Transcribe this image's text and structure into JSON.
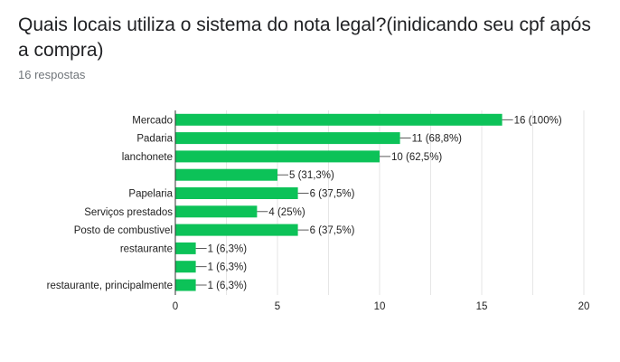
{
  "question": {
    "title": "Quais locais utiliza o sistema do nota legal?(inidicando seu cpf após a compra)",
    "responses": "16 respostas"
  },
  "colors": {
    "bar": "#0cc258",
    "grid": "#e6e6e6",
    "axis": "#333333",
    "text": "#222222"
  },
  "chart_data": {
    "type": "bar",
    "orientation": "horizontal",
    "categories": [
      "Mercado",
      "Padaria",
      "lanchonete",
      "",
      "Papelaria",
      "Serviços prestados",
      "Posto de combustivel",
      "restaurante",
      "",
      "restaurante, principalmente"
    ],
    "values": [
      16,
      11,
      10,
      5,
      6,
      4,
      6,
      1,
      1,
      1
    ],
    "data_labels": [
      "16 (100%)",
      "11 (68,8%)",
      "10 (62,5%)",
      "5 (31,3%)",
      "6 (37,5%)",
      "4 (25%)",
      "6 (37,5%)",
      "1 (6,3%)",
      "1 (6,3%)",
      "1 (6,3%)"
    ],
    "xlim": [
      0,
      20
    ],
    "xticks": [
      0,
      5,
      10,
      15,
      20
    ],
    "grid": true,
    "legend": "none"
  }
}
